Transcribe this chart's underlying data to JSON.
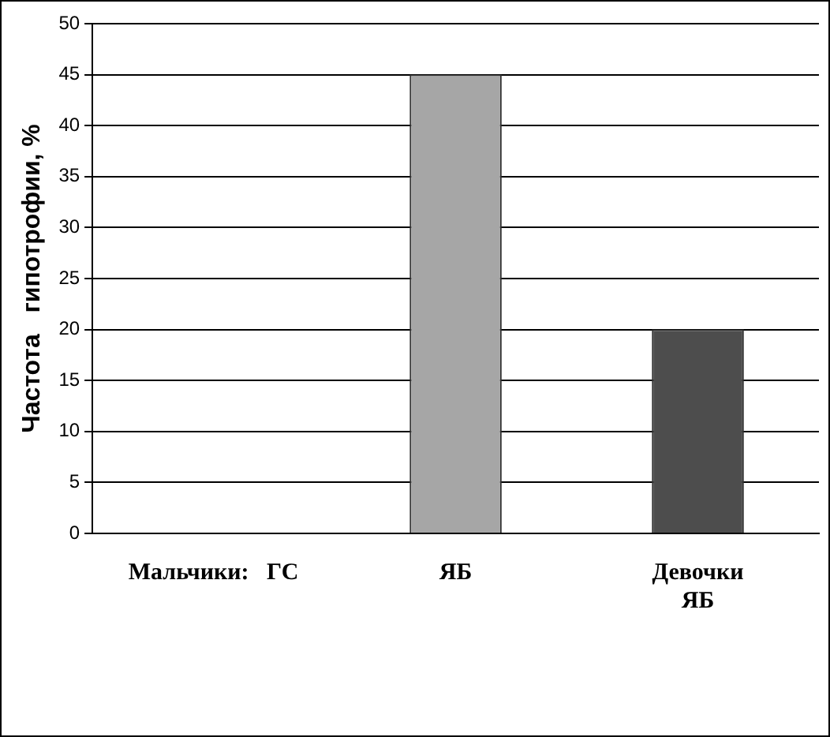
{
  "chart_data": {
    "type": "bar",
    "ylabel": "Частота   гипотрофии, %",
    "categories": [
      "Мальчики:   ГС",
      "ЯБ",
      "Девочки\nЯБ"
    ],
    "values": [
      0,
      45,
      20
    ],
    "colors": [
      "#808080",
      "#a6a6a6",
      "#4d4d4d"
    ],
    "ylim": [
      0,
      50
    ],
    "yticks": [
      0,
      5,
      10,
      15,
      20,
      25,
      30,
      35,
      40,
      45,
      50
    ],
    "grid": "y",
    "legend": false
  }
}
